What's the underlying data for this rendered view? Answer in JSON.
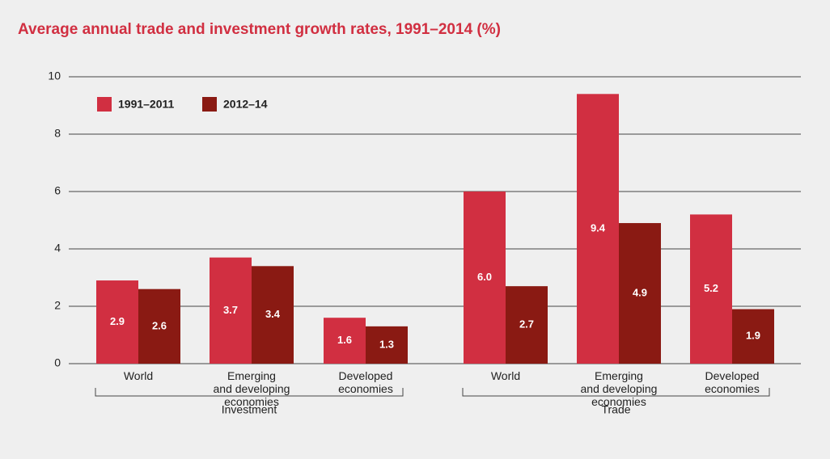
{
  "chart_data": {
    "type": "bar",
    "title": "Average annual trade and investment growth rates, 1991–2014 (%)",
    "categories": [
      "World",
      "Emerging\nand developing\neconomies",
      "Developed\neconomies",
      "World",
      "Emerging\nand developing\neconomies",
      "Developed\neconomies"
    ],
    "groups": [
      "Investment",
      "Trade"
    ],
    "series": [
      {
        "name": "1991–2011",
        "color": "#d12f41",
        "values": [
          2.9,
          3.7,
          1.6,
          6.0,
          9.4,
          5.2
        ],
        "value_labels": [
          "2.9",
          "3.7",
          "1.6",
          "6.0",
          "9.4",
          "5.2"
        ]
      },
      {
        "name": "2012–14",
        "color": "#8a1a13",
        "values": [
          2.6,
          3.4,
          1.3,
          2.7,
          4.9,
          1.9
        ],
        "value_labels": [
          "2.6",
          "3.4",
          "1.3",
          "2.7",
          "4.9",
          "1.9"
        ]
      }
    ],
    "ylim": [
      0,
      10
    ],
    "yticks": [
      0,
      2,
      4,
      6,
      8,
      10
    ],
    "grid": true,
    "legend": "top-left"
  }
}
